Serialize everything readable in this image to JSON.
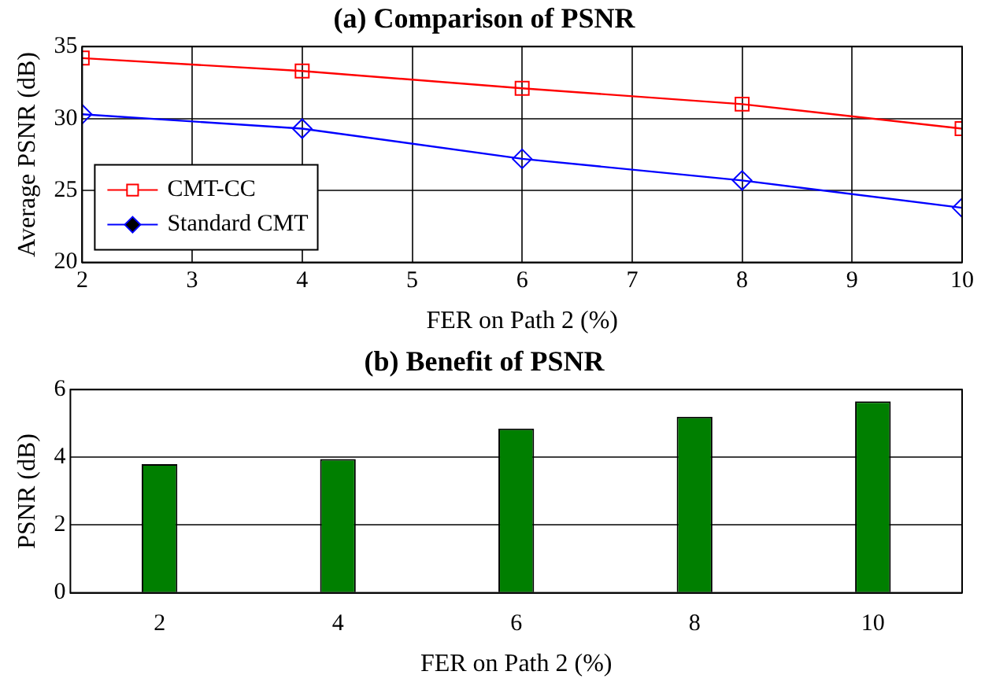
{
  "chart_data": [
    {
      "type": "line",
      "title": "(a) Comparison of PSNR",
      "xlabel": "FER on Path 2 (%)",
      "ylabel": "Average PSNR (dB)",
      "x": [
        2,
        4,
        6,
        8,
        10
      ],
      "series": [
        {
          "name": "CMT-CC",
          "color": "#ff0000",
          "marker": "square",
          "values": [
            34.2,
            33.3,
            32.1,
            31.0,
            29.3
          ]
        },
        {
          "name": "Standard CMT",
          "color": "#0000ff",
          "marker": "diamond",
          "values": [
            30.3,
            29.3,
            27.2,
            25.7,
            23.8
          ]
        }
      ],
      "xlim": [
        2,
        10
      ],
      "xticks": [
        2,
        3,
        4,
        5,
        6,
        7,
        8,
        9,
        10
      ],
      "ylim": [
        20,
        35
      ],
      "yticks": [
        20,
        25,
        30,
        35
      ],
      "grid": true,
      "legend": "bottom left"
    },
    {
      "type": "bar",
      "title": "(b) Benefit of PSNR",
      "xlabel": "FER on Path 2 (%)",
      "ylabel": "PSNR (dB)",
      "categories": [
        "2",
        "4",
        "6",
        "8",
        "10"
      ],
      "values": [
        3.8,
        3.95,
        4.85,
        5.2,
        5.65
      ],
      "color": "#007f00",
      "ylim": [
        0,
        6
      ],
      "yticks": [
        0,
        2,
        4,
        6
      ],
      "grid": "y"
    }
  ]
}
